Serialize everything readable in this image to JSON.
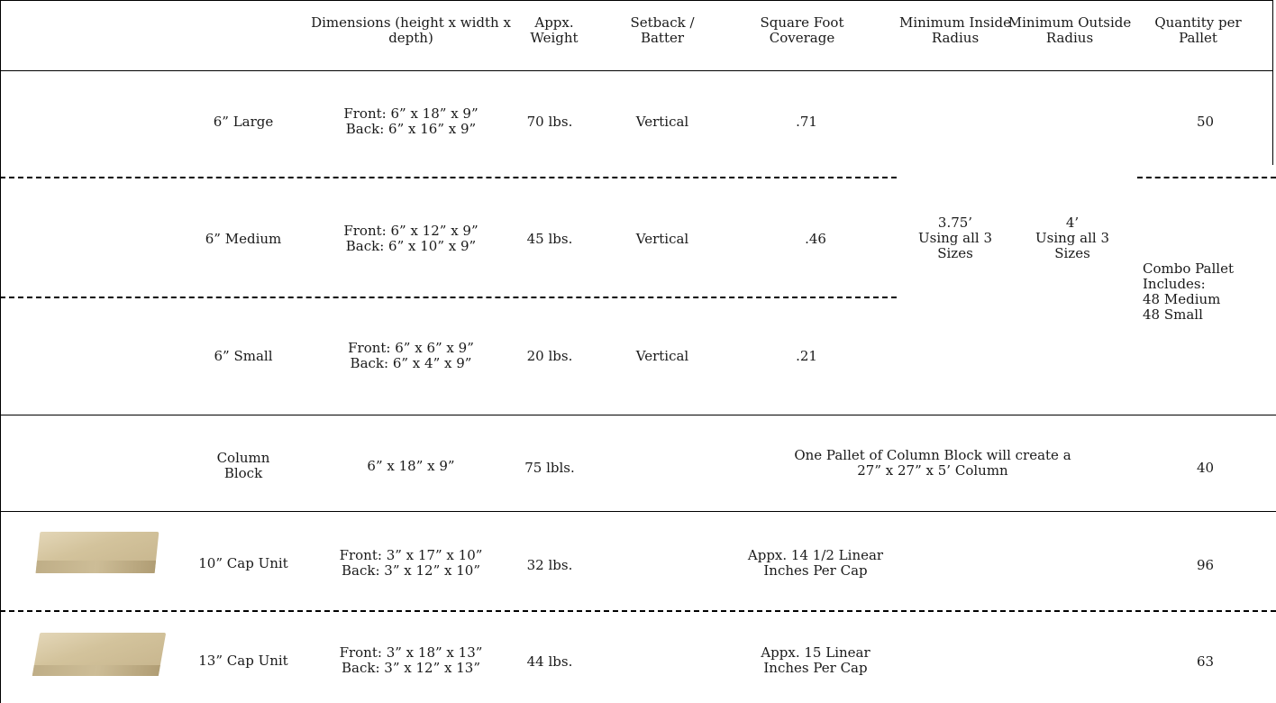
{
  "headers": {
    "dimensions": "Dimensions\n(height x width x depth)",
    "weight": "Appx.\nWeight",
    "setback": "Setback /\nBatter",
    "coverage": "Square Foot\nCoverage",
    "inside_radius": "Minimum\nInside Radius",
    "outside_radius": "Minimum\nOutside Radius",
    "quantity": "Quantity\nper Pallet"
  },
  "rows": {
    "large": {
      "name": "6” Large",
      "dimensions": "Front: 6” x 18” x 9”\nBack:  6” x 16” x 9”",
      "weight": "70 lbs.",
      "setback": "Vertical",
      "coverage": ".71",
      "quantity": "50"
    },
    "medium": {
      "name": "6” Medium",
      "dimensions": "Front: 6” x 12” x 9”\nBack:  6” x 10” x 9”",
      "weight": "45 lbs.",
      "setback": "Vertical",
      "coverage": ".46"
    },
    "small": {
      "name": "6” Small",
      "dimensions": "Front: 6” x 6” x 9”\nBack:  6” x 4” x 9”",
      "weight": "20 lbs.",
      "setback": "Vertical",
      "coverage": ".21"
    },
    "shared": {
      "inside_radius": "3.75’\nUsing all 3\nSizes",
      "outside_radius": "4’\nUsing all 3\nSizes",
      "combo_pallet": "Combo Pallet\nIncludes:\n48 Medium\n48 Small"
    },
    "column": {
      "name": "Column\nBlock",
      "dimensions": "6” x 18” x 9”",
      "weight": "75 lbls.",
      "note": "One Pallet of Column Block will create a\n27” x 27” x 5’ Column",
      "quantity": "40"
    },
    "cap10": {
      "name": "10” Cap Unit",
      "dimensions": "Front: 3” x 17” x 10”\nBack: 3” x 12” x 10”",
      "weight": "32 lbs.",
      "note": "Appx. 14 1/2  Linear\nInches Per Cap",
      "quantity": "96"
    },
    "cap13": {
      "name": "13” Cap Unit",
      "dimensions": "Front: 3” x 18” x 13”\nBack: 3” x 12” x 13”",
      "weight": "44 lbs.",
      "note": "Appx. 15 Linear\nInches Per Cap",
      "quantity": "63"
    }
  }
}
